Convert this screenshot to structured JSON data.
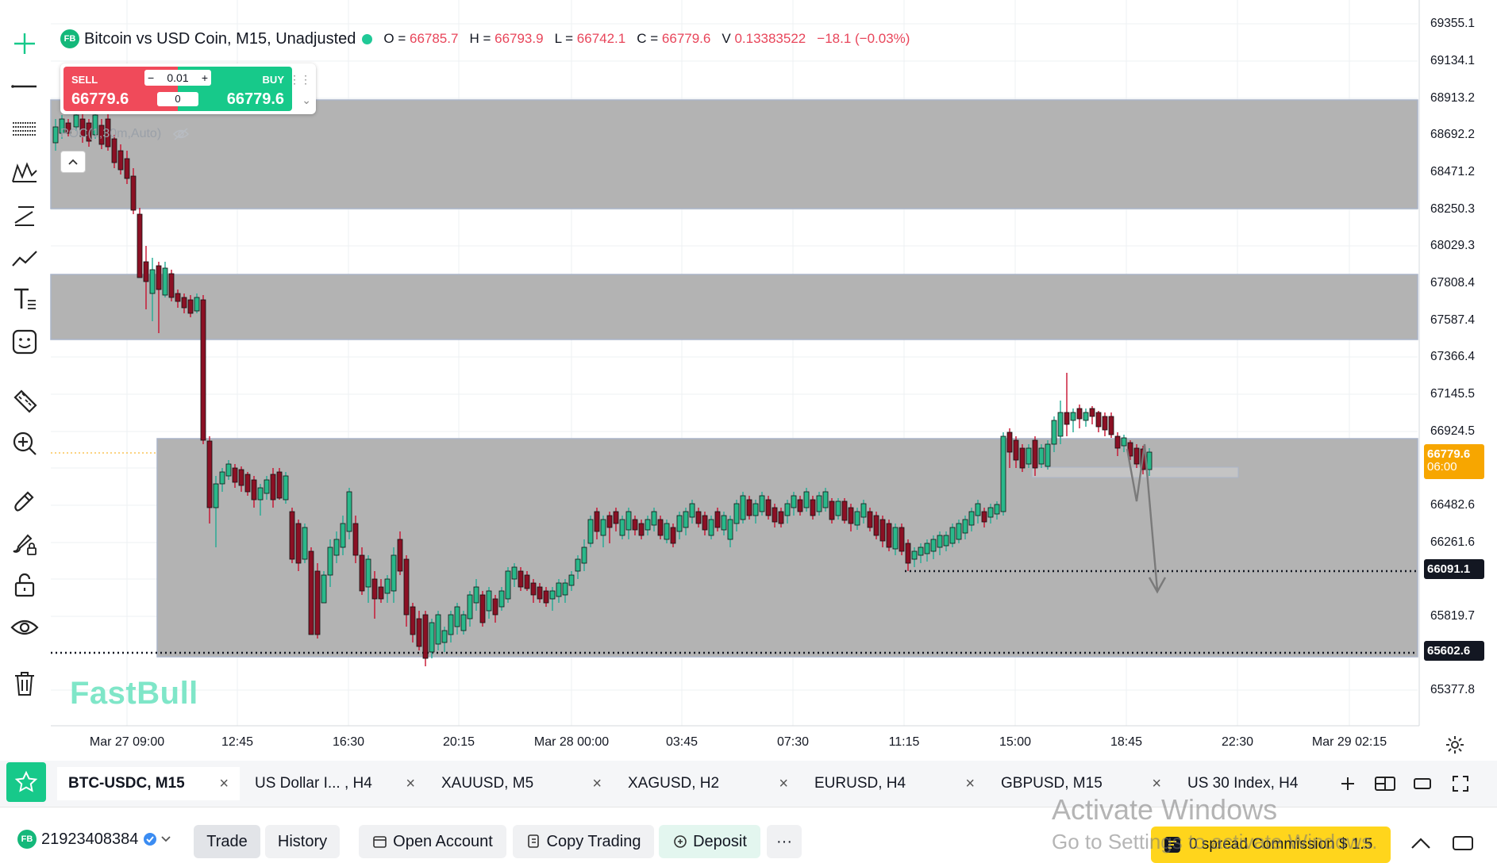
{
  "legend": {
    "badge": "FB",
    "title": "Bitcoin vs USD Coin, M15, Unadjusted",
    "o_label": "O =",
    "o_value": "66785.7",
    "h_label": "H =",
    "h_value": "66793.9",
    "l_label": "L =",
    "l_value": "66742.1",
    "c_label": "C =",
    "c_value": "66779.6",
    "v_label": "V",
    "v_value": "0.13383522",
    "change": "−18.1 (−0.03%)"
  },
  "trade_widget": {
    "sell_label": "SELL",
    "sell_price": "66779.6",
    "buy_label": "BUY",
    "buy_price": "66779.6",
    "lot_minus": "−",
    "lot_value": "0.01",
    "lot_plus": "+",
    "spread": "0"
  },
  "indicator_label": "POC(1,30m,Auto)",
  "watermark": "FastBull",
  "price_axis": {
    "labels": [
      "69355.1",
      "69134.1",
      "68913.2",
      "68692.2",
      "68471.2",
      "68250.3",
      "68029.3",
      "67808.4",
      "67587.4",
      "67366.4",
      "67145.5",
      "66924.5",
      "66482.6",
      "66261.6",
      "65819.7",
      "65377.8"
    ],
    "current_price": "66779.6",
    "countdown": "06:00",
    "level_1": "66091.1",
    "level_2": "65602.6"
  },
  "time_axis": [
    "Mar 27 09:00",
    "12:45",
    "16:30",
    "20:15",
    "Mar 28 00:00",
    "03:45",
    "07:30",
    "11:15",
    "15:00",
    "18:45",
    "22:30",
    "Mar 29 02:15"
  ],
  "symbol_tabs": [
    {
      "label": "BTC-USDC, M15",
      "active": true
    },
    {
      "label": "US Dollar I... , H4",
      "active": false
    },
    {
      "label": "XAUUSD, M5",
      "active": false
    },
    {
      "label": "XAGUSD, H2",
      "active": false
    },
    {
      "label": "EURUSD, H4",
      "active": false
    },
    {
      "label": "GBPUSD, M15",
      "active": false
    },
    {
      "label": "US 30 Index, H4",
      "active": false
    }
  ],
  "tab_close": "×",
  "account": {
    "badge": "FB",
    "number": "21923408384"
  },
  "bottom_buttons": {
    "trade": "Trade",
    "history": "History",
    "open_account": "Open Account",
    "copy_trading": "Copy Trading",
    "deposit": "Deposit",
    "more": "···"
  },
  "promo": "0 spread Commission $ 1.5",
  "activate_windows": {
    "line1": "Activate Windows",
    "line2": "Go to Settings to activate Windows."
  },
  "colors": {
    "up": "#22ab94",
    "down": "#c8102e",
    "zone": "#b3b3b3",
    "accent": "#17c98a",
    "current": "#f7a600"
  },
  "icons": [
    "crosshair-icon",
    "horizontal-line-icon",
    "fib-lines-icon",
    "pattern-icon",
    "trend-angle-icon",
    "zigzag-icon",
    "text-icon",
    "emoji-icon",
    "ruler-icon",
    "zoom-in-icon",
    "magnet-pen-icon",
    "brush-lock-icon",
    "lock-icon",
    "eye-icon",
    "trash-icon"
  ]
}
